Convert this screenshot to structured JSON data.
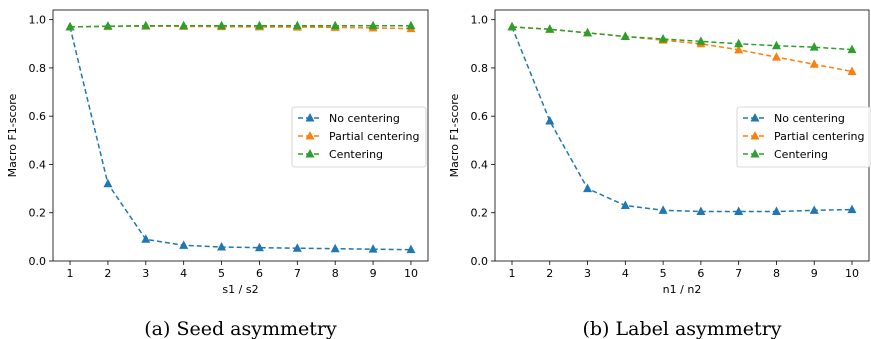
{
  "chart_data": [
    {
      "type": "line",
      "caption": "(a) Seed asymmetry",
      "xlabel": "s1 / s2",
      "ylabel": "Macro F1-score",
      "xlim": [
        0.55,
        10.45
      ],
      "ylim": [
        0.0,
        1.04
      ],
      "x": [
        1,
        2,
        3,
        4,
        5,
        6,
        7,
        8,
        9,
        10
      ],
      "xticks": [
        "1",
        "2",
        "3",
        "4",
        "5",
        "6",
        "7",
        "8",
        "9",
        "10"
      ],
      "yticks": [
        "0.0",
        "0.2",
        "0.4",
        "0.6",
        "0.8",
        "1.0"
      ],
      "legend_position": "center-right",
      "series": [
        {
          "name": "No centering",
          "color": "#1f77b4",
          "values": [
            0.97,
            0.32,
            0.09,
            0.065,
            0.058,
            0.055,
            0.053,
            0.051,
            0.049,
            0.047
          ]
        },
        {
          "name": "Partial centering",
          "color": "#ff7f0e",
          "values": [
            0.97,
            0.972,
            0.973,
            0.972,
            0.971,
            0.97,
            0.969,
            0.968,
            0.966,
            0.963
          ]
        },
        {
          "name": "Centering",
          "color": "#2ca02c",
          "values": [
            0.97,
            0.973,
            0.975,
            0.975,
            0.975,
            0.975,
            0.975,
            0.975,
            0.975,
            0.975
          ]
        }
      ]
    },
    {
      "type": "line",
      "caption": "(b) Label asymmetry",
      "xlabel": "n1 / n2",
      "ylabel": "Macro F1-score",
      "xlim": [
        0.55,
        10.45
      ],
      "ylim": [
        0.0,
        1.04
      ],
      "x": [
        1,
        2,
        3,
        4,
        5,
        6,
        7,
        8,
        9,
        10
      ],
      "xticks": [
        "1",
        "2",
        "3",
        "4",
        "5",
        "6",
        "7",
        "8",
        "9",
        "10"
      ],
      "yticks": [
        "0.0",
        "0.2",
        "0.4",
        "0.6",
        "0.8",
        "1.0"
      ],
      "legend_position": "center-right",
      "series": [
        {
          "name": "No centering",
          "color": "#1f77b4",
          "values": [
            0.97,
            0.58,
            0.3,
            0.23,
            0.21,
            0.205,
            0.205,
            0.205,
            0.21,
            0.213
          ]
        },
        {
          "name": "Partial centering",
          "color": "#ff7f0e",
          "values": [
            0.97,
            0.96,
            0.945,
            0.93,
            0.915,
            0.9,
            0.875,
            0.845,
            0.815,
            0.785
          ]
        },
        {
          "name": "Centering",
          "color": "#2ca02c",
          "values": [
            0.97,
            0.96,
            0.945,
            0.93,
            0.92,
            0.91,
            0.9,
            0.892,
            0.886,
            0.876
          ]
        }
      ]
    }
  ]
}
